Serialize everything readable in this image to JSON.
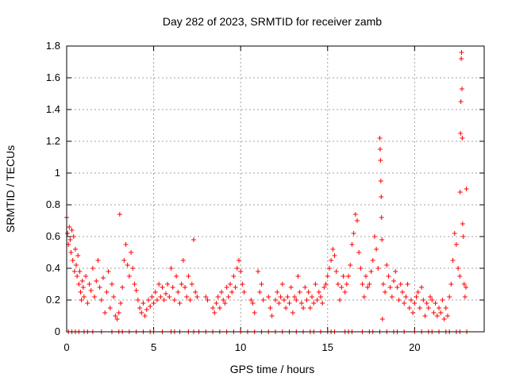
{
  "chart_data": {
    "type": "scatter",
    "title": "Day 282 of 2023, SRMTID for receiver zamb",
    "xlabel": "GPS time / hours",
    "ylabel": "SRMTID / TECUs",
    "xlim": [
      0,
      24
    ],
    "ylim": [
      0,
      1.8
    ],
    "xticks": [
      0,
      5,
      10,
      15,
      20
    ],
    "xtick_labels": [
      "0",
      "5",
      "10",
      "15",
      "20"
    ],
    "yticks": [
      0,
      0.2,
      0.4,
      0.6,
      0.8,
      1,
      1.2,
      1.4,
      1.6,
      1.8
    ],
    "ytick_labels": [
      "0",
      "0.2",
      "0.4",
      "0.6",
      "0.8",
      "1",
      "1.2",
      "1.4",
      "1.6",
      "1.8"
    ],
    "grid": true,
    "marker": "+",
    "marker_color": "#ff0000",
    "series": [
      {
        "name": "SRMTID",
        "points": [
          [
            0.0,
            0.72
          ],
          [
            0.05,
            0.62
          ],
          [
            0.1,
            0.55
          ],
          [
            0.15,
            0.66
          ],
          [
            0.2,
            0.58
          ],
          [
            0.25,
            0.5
          ],
          [
            0.3,
            0.64
          ],
          [
            0.35,
            0.45
          ],
          [
            0.4,
            0.6
          ],
          [
            0.45,
            0.38
          ],
          [
            0.5,
            0.52
          ],
          [
            0.55,
            0.42
          ],
          [
            0.6,
            0.35
          ],
          [
            0.65,
            0.48
          ],
          [
            0.7,
            0.3
          ],
          [
            0.75,
            0.38
          ],
          [
            0.8,
            0.25
          ],
          [
            0.85,
            0.2
          ],
          [
            0.9,
            0.32
          ],
          [
            0.95,
            0.28
          ],
          [
            1.0,
            0.22
          ],
          [
            1.1,
            0.35
          ],
          [
            1.2,
            0.18
          ],
          [
            1.3,
            0.3
          ],
          [
            1.4,
            0.26
          ],
          [
            1.5,
            0.4
          ],
          [
            1.6,
            0.22
          ],
          [
            1.7,
            0.32
          ],
          [
            1.8,
            0.45
          ],
          [
            1.9,
            0.28
          ],
          [
            2.0,
            0.2
          ],
          [
            2.1,
            0.34
          ],
          [
            2.2,
            0.12
          ],
          [
            2.3,
            0.25
          ],
          [
            2.4,
            0.38
          ],
          [
            2.5,
            0.15
          ],
          [
            2.6,
            0.3
          ],
          [
            2.7,
            0.22
          ],
          [
            2.8,
            0.1
          ],
          [
            2.9,
            0.08
          ],
          [
            3.0,
            0.12
          ],
          [
            3.05,
            0.74
          ],
          [
            3.1,
            0.18
          ],
          [
            3.2,
            0.28
          ],
          [
            3.3,
            0.45
          ],
          [
            3.4,
            0.55
          ],
          [
            3.5,
            0.42
          ],
          [
            3.6,
            0.35
          ],
          [
            3.7,
            0.5
          ],
          [
            3.8,
            0.4
          ],
          [
            3.9,
            0.3
          ],
          [
            4.0,
            0.26
          ],
          [
            4.1,
            0.2
          ],
          [
            4.2,
            0.15
          ],
          [
            4.3,
            0.12
          ],
          [
            4.4,
            0.18
          ],
          [
            4.5,
            0.1
          ],
          [
            4.6,
            0.14
          ],
          [
            4.7,
            0.2
          ],
          [
            4.8,
            0.16
          ],
          [
            4.9,
            0.22
          ],
          [
            5.0,
            0.18
          ],
          [
            5.1,
            0.25
          ],
          [
            5.2,
            0.2
          ],
          [
            5.3,
            0.3
          ],
          [
            5.4,
            0.22
          ],
          [
            5.5,
            0.28
          ],
          [
            5.6,
            0.2
          ],
          [
            5.7,
            0.24
          ],
          [
            5.8,
            0.3
          ],
          [
            5.9,
            0.22
          ],
          [
            6.0,
            0.4
          ],
          [
            6.1,
            0.28
          ],
          [
            6.2,
            0.2
          ],
          [
            6.3,
            0.35
          ],
          [
            6.4,
            0.25
          ],
          [
            6.5,
            0.18
          ],
          [
            6.6,
            0.3
          ],
          [
            6.7,
            0.45
          ],
          [
            6.8,
            0.28
          ],
          [
            6.9,
            0.22
          ],
          [
            7.0,
            0.35
          ],
          [
            7.1,
            0.2
          ],
          [
            7.2,
            0.3
          ],
          [
            7.3,
            0.58
          ],
          [
            7.4,
            0.25
          ],
          [
            7.5,
            0.22
          ],
          [
            8.0,
            0.22
          ],
          [
            8.1,
            0.2
          ],
          [
            8.4,
            0.15
          ],
          [
            8.5,
            0.12
          ],
          [
            8.6,
            0.18
          ],
          [
            8.7,
            0.22
          ],
          [
            8.8,
            0.15
          ],
          [
            8.9,
            0.25
          ],
          [
            9.0,
            0.2
          ],
          [
            9.1,
            0.18
          ],
          [
            9.2,
            0.28
          ],
          [
            9.3,
            0.22
          ],
          [
            9.4,
            0.3
          ],
          [
            9.5,
            0.25
          ],
          [
            9.6,
            0.35
          ],
          [
            9.7,
            0.28
          ],
          [
            9.8,
            0.4
          ],
          [
            9.9,
            0.45
          ],
          [
            10.0,
            0.38
          ],
          [
            10.1,
            0.3
          ],
          [
            10.2,
            0.25
          ],
          [
            10.6,
            0.2
          ],
          [
            10.7,
            0.18
          ],
          [
            10.8,
            0.12
          ],
          [
            11.0,
            0.38
          ],
          [
            11.1,
            0.25
          ],
          [
            11.2,
            0.3
          ],
          [
            11.3,
            0.2
          ],
          [
            11.6,
            0.22
          ],
          [
            11.7,
            0.15
          ],
          [
            11.8,
            0.1
          ],
          [
            12.0,
            0.2
          ],
          [
            12.1,
            0.25
          ],
          [
            12.2,
            0.18
          ],
          [
            12.3,
            0.22
          ],
          [
            12.4,
            0.3
          ],
          [
            12.5,
            0.2
          ],
          [
            12.6,
            0.15
          ],
          [
            12.7,
            0.22
          ],
          [
            12.8,
            0.18
          ],
          [
            12.9,
            0.28
          ],
          [
            13.0,
            0.12
          ],
          [
            13.1,
            0.22
          ],
          [
            13.2,
            0.2
          ],
          [
            13.3,
            0.35
          ],
          [
            13.4,
            0.25
          ],
          [
            13.5,
            0.18
          ],
          [
            13.6,
            0.15
          ],
          [
            13.7,
            0.28
          ],
          [
            13.8,
            0.2
          ],
          [
            13.9,
            0.25
          ],
          [
            14.0,
            0.15
          ],
          [
            14.1,
            0.22
          ],
          [
            14.2,
            0.18
          ],
          [
            14.3,
            0.3
          ],
          [
            14.4,
            0.2
          ],
          [
            14.5,
            0.25
          ],
          [
            14.6,
            0.22
          ],
          [
            14.7,
            0.18
          ],
          [
            14.8,
            0.28
          ],
          [
            14.9,
            0.3
          ],
          [
            15.0,
            0.35
          ],
          [
            15.1,
            0.4
          ],
          [
            15.2,
            0.45
          ],
          [
            15.3,
            0.52
          ],
          [
            15.4,
            0.48
          ],
          [
            15.5,
            0.38
          ],
          [
            15.6,
            0.3
          ],
          [
            15.7,
            0.2
          ],
          [
            15.8,
            0.28
          ],
          [
            15.9,
            0.35
          ],
          [
            16.0,
            0.25
          ],
          [
            16.1,
            0.3
          ],
          [
            16.2,
            0.35
          ],
          [
            16.3,
            0.42
          ],
          [
            16.4,
            0.55
          ],
          [
            16.5,
            0.62
          ],
          [
            16.6,
            0.74
          ],
          [
            16.7,
            0.7
          ],
          [
            16.8,
            0.5
          ],
          [
            16.9,
            0.4
          ],
          [
            17.0,
            0.3
          ],
          [
            17.1,
            0.22
          ],
          [
            17.2,
            0.35
          ],
          [
            17.3,
            0.28
          ],
          [
            17.4,
            0.3
          ],
          [
            17.5,
            0.38
          ],
          [
            17.6,
            0.45
          ],
          [
            17.7,
            0.6
          ],
          [
            17.8,
            0.52
          ],
          [
            17.9,
            0.4
          ],
          [
            18.0,
            1.22
          ],
          [
            18.02,
            1.15
          ],
          [
            18.04,
            1.08
          ],
          [
            18.06,
            0.95
          ],
          [
            18.08,
            0.85
          ],
          [
            18.1,
            0.72
          ],
          [
            18.12,
            0.58
          ],
          [
            18.15,
            0.08
          ],
          [
            18.2,
            0.3
          ],
          [
            18.3,
            0.25
          ],
          [
            18.4,
            0.42
          ],
          [
            18.5,
            0.35
          ],
          [
            18.6,
            0.28
          ],
          [
            18.7,
            0.22
          ],
          [
            18.8,
            0.32
          ],
          [
            18.9,
            0.38
          ],
          [
            19.0,
            0.28
          ],
          [
            19.1,
            0.2
          ],
          [
            19.2,
            0.3
          ],
          [
            19.3,
            0.25
          ],
          [
            19.4,
            0.18
          ],
          [
            19.5,
            0.22
          ],
          [
            19.6,
            0.3
          ],
          [
            19.7,
            0.15
          ],
          [
            19.8,
            0.2
          ],
          [
            19.9,
            0.12
          ],
          [
            20.0,
            0.18
          ],
          [
            20.1,
            0.22
          ],
          [
            20.2,
            0.25
          ],
          [
            20.3,
            0.15
          ],
          [
            20.4,
            0.28
          ],
          [
            20.5,
            0.2
          ],
          [
            20.6,
            0.1
          ],
          [
            20.7,
            0.18
          ],
          [
            20.8,
            0.15
          ],
          [
            20.9,
            0.22
          ],
          [
            21.0,
            0.2
          ],
          [
            21.1,
            0.12
          ],
          [
            21.2,
            0.18
          ],
          [
            21.3,
            0.1
          ],
          [
            21.4,
            0.15
          ],
          [
            21.5,
            0.12
          ],
          [
            21.6,
            0.2
          ],
          [
            21.7,
            0.08
          ],
          [
            21.8,
            0.15
          ],
          [
            21.9,
            0.1
          ],
          [
            22.0,
            0.22
          ],
          [
            22.1,
            0.3
          ],
          [
            22.2,
            0.45
          ],
          [
            22.3,
            0.62
          ],
          [
            22.4,
            0.55
          ],
          [
            22.5,
            0.4
          ],
          [
            22.6,
            0.35
          ],
          [
            22.62,
            0.88
          ],
          [
            22.64,
            1.25
          ],
          [
            22.66,
            1.45
          ],
          [
            22.68,
            1.72
          ],
          [
            22.7,
            1.76
          ],
          [
            22.72,
            1.53
          ],
          [
            22.74,
            1.22
          ],
          [
            22.76,
            0.68
          ],
          [
            22.8,
            0.6
          ],
          [
            22.85,
            0.3
          ],
          [
            22.9,
            0.22
          ],
          [
            22.95,
            0.28
          ],
          [
            22.98,
            0.9
          ]
        ]
      }
    ],
    "zero_marks_x": [
      0.1,
      0.3,
      0.5,
      0.7,
      1.0,
      1.2,
      1.5,
      2.0,
      2.6,
      3.0,
      3.2,
      3.6,
      4.0,
      4.4,
      4.8,
      5.0,
      5.5,
      6.0,
      6.2,
      6.5,
      7.0,
      7.3,
      7.6,
      8.0,
      8.4,
      8.8,
      9.2,
      9.6,
      10.0,
      10.4,
      10.8,
      11.2,
      11.6,
      12.0,
      12.4,
      12.8,
      13.2,
      13.6,
      14.0,
      14.2,
      14.6,
      15.0,
      15.2,
      15.4,
      16.0,
      16.2,
      16.4,
      17.0,
      17.4,
      17.6,
      18.0,
      18.4,
      18.8,
      19.0,
      19.4,
      20.0,
      20.4,
      20.8,
      21.0,
      21.4,
      21.8,
      22.0,
      22.4,
      22.6,
      23.0
    ]
  }
}
